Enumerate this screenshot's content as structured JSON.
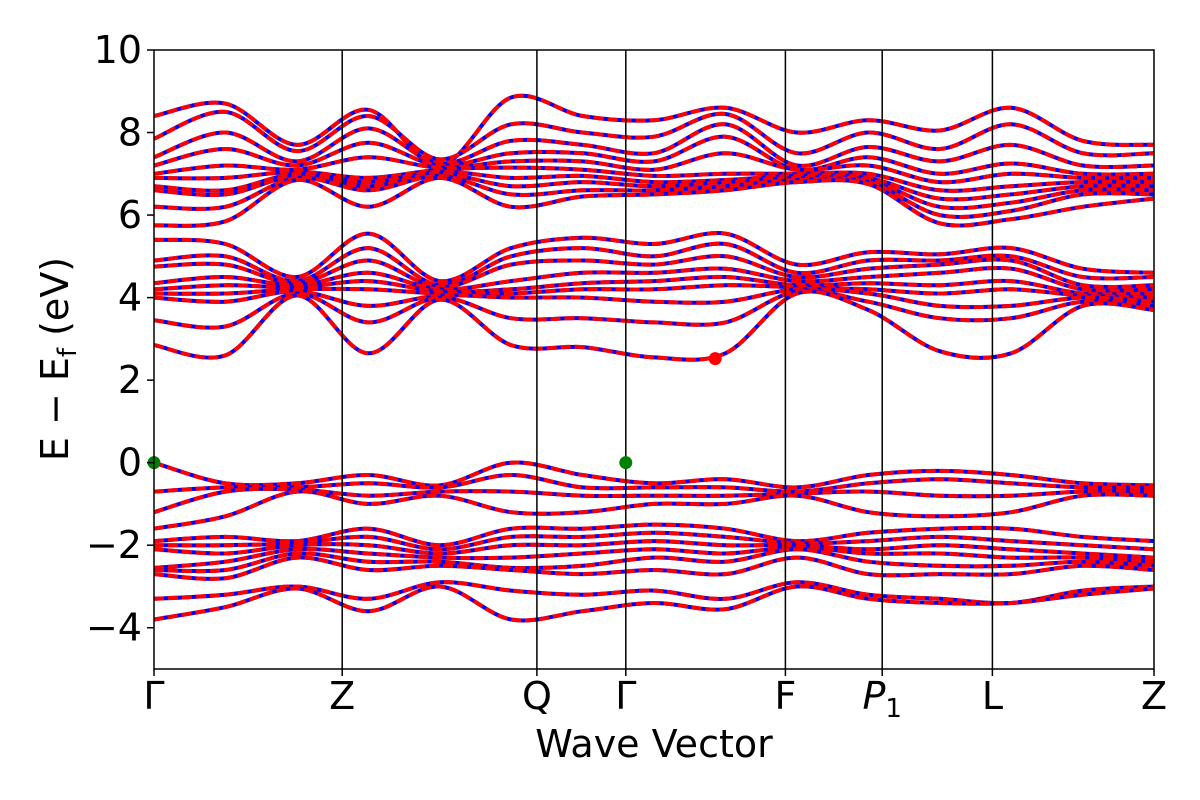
{
  "chart_data": {
    "type": "line",
    "title": "",
    "xlabel": "Wave Vector",
    "ylabel": {
      "prefix": "E − E",
      "subscript": "f",
      "suffix": " (eV)"
    },
    "ylim": [
      -5,
      10
    ],
    "yticks": [
      {
        "value": 10,
        "label": "10"
      },
      {
        "value": 8,
        "label": "8"
      },
      {
        "value": 6,
        "label": "6"
      },
      {
        "value": 4,
        "label": "4"
      },
      {
        "value": 2,
        "label": "2"
      },
      {
        "value": 0,
        "label": "0"
      },
      {
        "value": -2,
        "label": "−2"
      },
      {
        "value": -4,
        "label": "−4"
      }
    ],
    "xlim": [
      0,
      1
    ],
    "kpoints": [
      {
        "x": 0.0,
        "label": "Γ",
        "sub": ""
      },
      {
        "x": 0.1882,
        "label": "Z",
        "sub": ""
      },
      {
        "x": 0.3829,
        "label": "Q",
        "sub": ""
      },
      {
        "x": 0.4718,
        "label": "Γ",
        "sub": ""
      },
      {
        "x": 0.6314,
        "label": "F",
        "sub": ""
      },
      {
        "x": 0.7282,
        "label": "P",
        "sub": "1",
        "italic": true
      },
      {
        "x": 0.8384,
        "label": "L",
        "sub": ""
      },
      {
        "x": 1.0,
        "label": "Z",
        "sub": ""
      }
    ],
    "line_colors": {
      "spin_up": "#ff0000",
      "spin_down": "#0000ff"
    },
    "markers": [
      {
        "name": "vbm",
        "x": 0.0,
        "y": 0.0,
        "color": "#008000"
      },
      {
        "name": "vbm",
        "x": 0.4718,
        "y": 0.0,
        "color": "#008000"
      },
      {
        "name": "cbm",
        "x": 0.5612,
        "y": 2.52,
        "color": "#ff0000"
      }
    ],
    "bands": [
      {
        "name": "",
        "y": [
          8.4,
          8.7,
          7.7,
          8.55,
          7.2,
          8.85,
          8.4,
          8.3,
          8.6,
          8.0,
          8.3,
          8.05,
          8.6,
          7.8,
          7.7
        ]
      },
      {
        "name": "",
        "y": [
          7.85,
          8.5,
          7.55,
          8.4,
          7.35,
          8.2,
          8.0,
          7.9,
          8.45,
          7.5,
          8.0,
          7.6,
          8.2,
          7.5,
          7.5
        ]
      },
      {
        "name": "",
        "y": [
          7.4,
          8.0,
          7.3,
          8.1,
          7.25,
          7.8,
          7.7,
          7.5,
          8.2,
          7.2,
          7.65,
          7.3,
          7.7,
          7.2,
          7.2
        ]
      },
      {
        "name": "",
        "y": [
          7.2,
          7.6,
          7.2,
          7.75,
          7.2,
          7.5,
          7.5,
          7.3,
          7.9,
          7.1,
          7.4,
          7.0,
          7.25,
          7.0,
          7.0
        ]
      },
      {
        "name": "",
        "y": [
          7.0,
          7.2,
          7.1,
          7.4,
          7.15,
          7.3,
          7.3,
          7.1,
          7.5,
          7.1,
          7.2,
          6.8,
          7.0,
          6.9,
          6.9
        ]
      },
      {
        "name": "",
        "y": [
          6.9,
          6.9,
          7.05,
          6.9,
          7.1,
          7.15,
          7.1,
          6.95,
          7.0,
          7.0,
          7.0,
          6.6,
          6.7,
          6.8,
          6.8
        ]
      },
      {
        "name": "",
        "y": [
          6.7,
          6.6,
          7.0,
          6.8,
          7.05,
          6.9,
          6.95,
          6.8,
          6.85,
          6.95,
          6.9,
          6.4,
          6.5,
          6.7,
          6.7
        ]
      },
      {
        "name": "",
        "y": [
          6.6,
          6.5,
          6.95,
          6.7,
          7.0,
          6.7,
          6.8,
          6.7,
          6.8,
          6.9,
          6.85,
          6.2,
          6.3,
          6.6,
          6.6
        ]
      },
      {
        "name": "",
        "y": [
          6.2,
          6.2,
          6.9,
          6.6,
          6.95,
          6.5,
          6.6,
          6.6,
          6.7,
          6.85,
          6.8,
          6.0,
          6.1,
          6.5,
          6.5
        ]
      },
      {
        "name": "",
        "y": [
          5.75,
          5.85,
          6.85,
          6.2,
          6.9,
          6.2,
          6.45,
          6.5,
          6.6,
          6.8,
          6.75,
          5.8,
          5.9,
          6.2,
          6.4
        ]
      },
      {
        "name": "",
        "y": [
          5.4,
          5.3,
          4.5,
          5.55,
          4.4,
          5.2,
          5.45,
          5.3,
          5.55,
          4.8,
          5.1,
          5.05,
          5.2,
          4.7,
          4.6
        ]
      },
      {
        "name": "",
        "y": [
          4.9,
          5.0,
          4.4,
          5.2,
          4.3,
          5.0,
          5.2,
          5.0,
          5.3,
          4.6,
          4.9,
          4.9,
          5.0,
          4.5,
          4.5
        ]
      },
      {
        "name": "",
        "y": [
          4.75,
          4.8,
          4.35,
          4.9,
          4.25,
          4.8,
          4.9,
          4.8,
          5.0,
          4.5,
          4.7,
          4.8,
          4.9,
          4.3,
          4.3
        ]
      },
      {
        "name": "",
        "y": [
          4.35,
          4.5,
          4.3,
          4.6,
          4.2,
          4.4,
          4.6,
          4.6,
          4.7,
          4.4,
          4.5,
          4.6,
          4.7,
          4.2,
          4.2
        ]
      },
      {
        "name": "",
        "y": [
          4.2,
          4.3,
          4.25,
          4.4,
          4.15,
          4.2,
          4.35,
          4.4,
          4.5,
          4.3,
          4.35,
          4.3,
          4.4,
          4.1,
          4.1
        ]
      },
      {
        "name": "",
        "y": [
          4.1,
          4.1,
          4.2,
          4.2,
          4.1,
          4.1,
          4.2,
          4.2,
          4.3,
          4.25,
          4.2,
          4.1,
          4.2,
          4.05,
          4.0
        ]
      },
      {
        "name": "",
        "y": [
          4.0,
          3.9,
          4.15,
          3.8,
          4.05,
          4.0,
          4.0,
          3.9,
          3.9,
          4.2,
          4.1,
          3.8,
          3.8,
          4.0,
          3.9
        ]
      },
      {
        "name": "",
        "y": [
          3.45,
          3.3,
          4.1,
          3.4,
          4.0,
          3.5,
          3.5,
          3.4,
          3.4,
          4.15,
          3.9,
          3.5,
          3.5,
          3.9,
          3.8
        ]
      },
      {
        "name": "",
        "y": [
          2.85,
          2.6,
          4.05,
          2.65,
          3.95,
          2.85,
          2.8,
          2.55,
          2.65,
          4.1,
          3.7,
          2.7,
          2.65,
          3.8,
          3.7
        ]
      },
      {
        "name": "",
        "y": [
          0.0,
          -0.5,
          -0.5,
          -0.3,
          -0.55,
          0.0,
          -0.3,
          -0.5,
          -0.4,
          -0.6,
          -0.3,
          -0.2,
          -0.3,
          -0.5,
          -0.55
        ]
      },
      {
        "name": "",
        "y": [
          -0.7,
          -0.6,
          -0.6,
          -0.5,
          -0.6,
          -0.3,
          -0.6,
          -0.6,
          -0.6,
          -0.7,
          -0.5,
          -0.4,
          -0.5,
          -0.6,
          -0.6
        ]
      },
      {
        "name": "",
        "y": [
          -1.2,
          -0.7,
          -0.65,
          -0.8,
          -0.7,
          -0.7,
          -0.8,
          -0.8,
          -0.8,
          -0.75,
          -0.7,
          -0.8,
          -0.8,
          -0.7,
          -0.7
        ]
      },
      {
        "name": "",
        "y": [
          -1.6,
          -1.3,
          -0.7,
          -1.0,
          -0.8,
          -1.2,
          -1.2,
          -1.0,
          -1.0,
          -0.8,
          -1.2,
          -1.3,
          -1.2,
          -0.8,
          -0.8
        ]
      },
      {
        "name": "",
        "y": [
          -1.9,
          -1.8,
          -1.9,
          -1.6,
          -2.0,
          -1.6,
          -1.6,
          -1.5,
          -1.6,
          -1.9,
          -1.7,
          -1.6,
          -1.6,
          -1.8,
          -1.9
        ]
      },
      {
        "name": "",
        "y": [
          -2.0,
          -2.0,
          -1.95,
          -1.8,
          -2.1,
          -1.8,
          -1.8,
          -1.7,
          -1.8,
          -1.95,
          -1.9,
          -1.8,
          -1.9,
          -2.0,
          -2.1
        ]
      },
      {
        "name": "",
        "y": [
          -2.1,
          -2.2,
          -2.0,
          -2.0,
          -2.2,
          -2.0,
          -2.0,
          -1.9,
          -2.0,
          -2.0,
          -2.1,
          -2.0,
          -2.1,
          -2.2,
          -2.3
        ]
      },
      {
        "name": "",
        "y": [
          -2.55,
          -2.4,
          -2.1,
          -2.2,
          -2.3,
          -2.3,
          -2.2,
          -2.1,
          -2.2,
          -2.05,
          -2.2,
          -2.2,
          -2.3,
          -2.3,
          -2.4
        ]
      },
      {
        "name": "",
        "y": [
          -2.6,
          -2.6,
          -2.2,
          -2.4,
          -2.4,
          -2.55,
          -2.5,
          -2.3,
          -2.4,
          -2.1,
          -2.4,
          -2.5,
          -2.5,
          -2.4,
          -2.5
        ]
      },
      {
        "name": "",
        "y": [
          -2.7,
          -2.8,
          -2.3,
          -2.6,
          -2.5,
          -2.6,
          -2.7,
          -2.6,
          -2.7,
          -2.3,
          -2.7,
          -2.7,
          -2.7,
          -2.5,
          -2.6
        ]
      },
      {
        "name": "",
        "y": [
          -3.3,
          -3.2,
          -3.0,
          -3.3,
          -2.9,
          -3.1,
          -3.2,
          -3.1,
          -3.3,
          -2.9,
          -3.2,
          -3.3,
          -3.4,
          -3.1,
          -3.0
        ]
      },
      {
        "name": "",
        "y": [
          -3.8,
          -3.5,
          -3.05,
          -3.6,
          -3.0,
          -3.8,
          -3.6,
          -3.4,
          -3.55,
          -3.0,
          -3.3,
          -3.4,
          -3.4,
          -3.2,
          -3.05
        ]
      }
    ]
  }
}
